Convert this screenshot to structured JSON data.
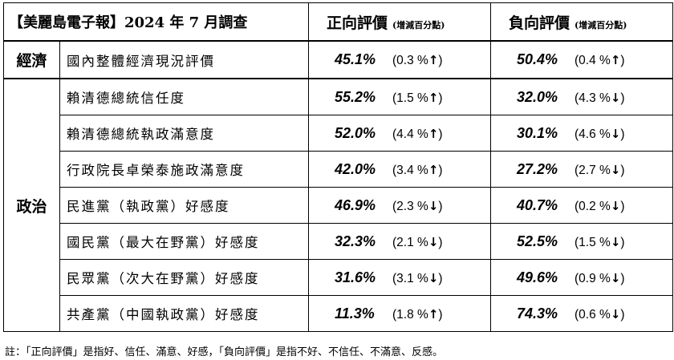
{
  "header": {
    "title": "【美麗島電子報】2024 年 7 月調查",
    "positive_label": "正向評價",
    "negative_label": "負向評價",
    "change_note": "(增減百分點)"
  },
  "categories": {
    "economy": "經濟",
    "politics": "政治"
  },
  "rows": [
    {
      "item": "國內整體經濟現況評價",
      "pos": "45.1%",
      "pos_change": "(0.3 %",
      "pos_dir": "↑",
      "pos_close": ")",
      "neg": "50.4%",
      "neg_change": "(0.4 %",
      "neg_dir": "↑",
      "neg_close": ")"
    },
    {
      "item": "賴清德總統信任度",
      "pos": "55.2%",
      "pos_change": "(1.5 %",
      "pos_dir": "↑",
      "pos_close": ")",
      "neg": "32.0%",
      "neg_change": "(4.3 %",
      "neg_dir": "↓",
      "neg_close": ")"
    },
    {
      "item": "賴清德總統執政滿意度",
      "pos": "52.0%",
      "pos_change": "(4.4 %",
      "pos_dir": "↑",
      "pos_close": ")",
      "neg": "30.1%",
      "neg_change": "(4.6 %",
      "neg_dir": "↓",
      "neg_close": ")"
    },
    {
      "item": "行政院長卓榮泰施政滿意度",
      "pos": "42.0%",
      "pos_change": "(3.4 %",
      "pos_dir": "↑",
      "pos_close": ")",
      "neg": "27.2%",
      "neg_change": "(2.7 %",
      "neg_dir": "↓",
      "neg_close": ")"
    },
    {
      "item": "民進黨（執政黨）好感度",
      "pos": "46.9%",
      "pos_change": "(2.3 %",
      "pos_dir": "↓",
      "pos_close": ")",
      "neg": "40.7%",
      "neg_change": "(0.2 %",
      "neg_dir": "↓",
      "neg_close": ")"
    },
    {
      "item": "國民黨（最大在野黨）好感度",
      "pos": "32.3%",
      "pos_change": "(2.1 %",
      "pos_dir": "↓",
      "pos_close": ")",
      "neg": "52.5%",
      "neg_change": "(1.5 %",
      "neg_dir": "↓",
      "neg_close": ")"
    },
    {
      "item": "民眾黨（次大在野黨）好感度",
      "pos": "31.6%",
      "pos_change": "(3.1 %",
      "pos_dir": "↓",
      "pos_close": ")",
      "neg": "49.6%",
      "neg_change": "(0.9 %",
      "neg_dir": "↓",
      "neg_close": ")"
    },
    {
      "item": "共產黨（中國執政黨）好感度",
      "pos": "11.3%",
      "pos_change": "(1.8 %",
      "pos_dir": "↑",
      "pos_close": ")",
      "neg": "74.3%",
      "neg_change": "(0.6 %",
      "neg_dir": "↓",
      "neg_close": ")"
    }
  ],
  "footnote": "註：「正向評價」是指好、信任、滿意、好感，「負向評價」是指不好、不信任、不滿意、反感。"
}
